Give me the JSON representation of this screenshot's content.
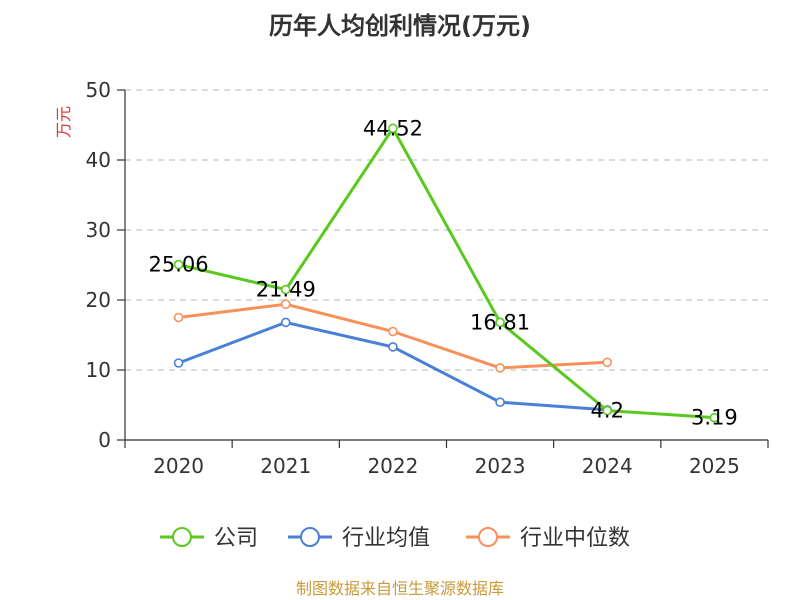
{
  "chart_data": {
    "type": "line",
    "title": "历年人均创利情况(万元)",
    "ylabel": "万元",
    "xlabel": "",
    "categories": [
      "2020",
      "2021",
      "2022",
      "2023",
      "2024",
      "2025"
    ],
    "ylim": [
      0,
      50
    ],
    "yticks": [
      0,
      10,
      20,
      30,
      40,
      50
    ],
    "grid": true,
    "legend_position": "bottom",
    "series": [
      {
        "name": "公司",
        "color": "#5ac91e",
        "values": [
          25.06,
          21.49,
          44.52,
          16.81,
          4.2,
          3.19
        ],
        "labels": [
          "25.06",
          "21.49",
          "44.52",
          "16.81",
          "4.2",
          "3.19"
        ]
      },
      {
        "name": "行业均值",
        "color": "#4a7fd8",
        "values": [
          11.0,
          16.8,
          13.3,
          5.4,
          4.3,
          null
        ]
      },
      {
        "name": "行业中位数",
        "color": "#f7905a",
        "values": [
          17.5,
          19.4,
          15.5,
          10.3,
          11.1,
          null
        ]
      }
    ],
    "ylabel_color": "#e03030",
    "source": "制图数据来自恒生聚源数据库",
    "source_color": "#c79a3a"
  }
}
